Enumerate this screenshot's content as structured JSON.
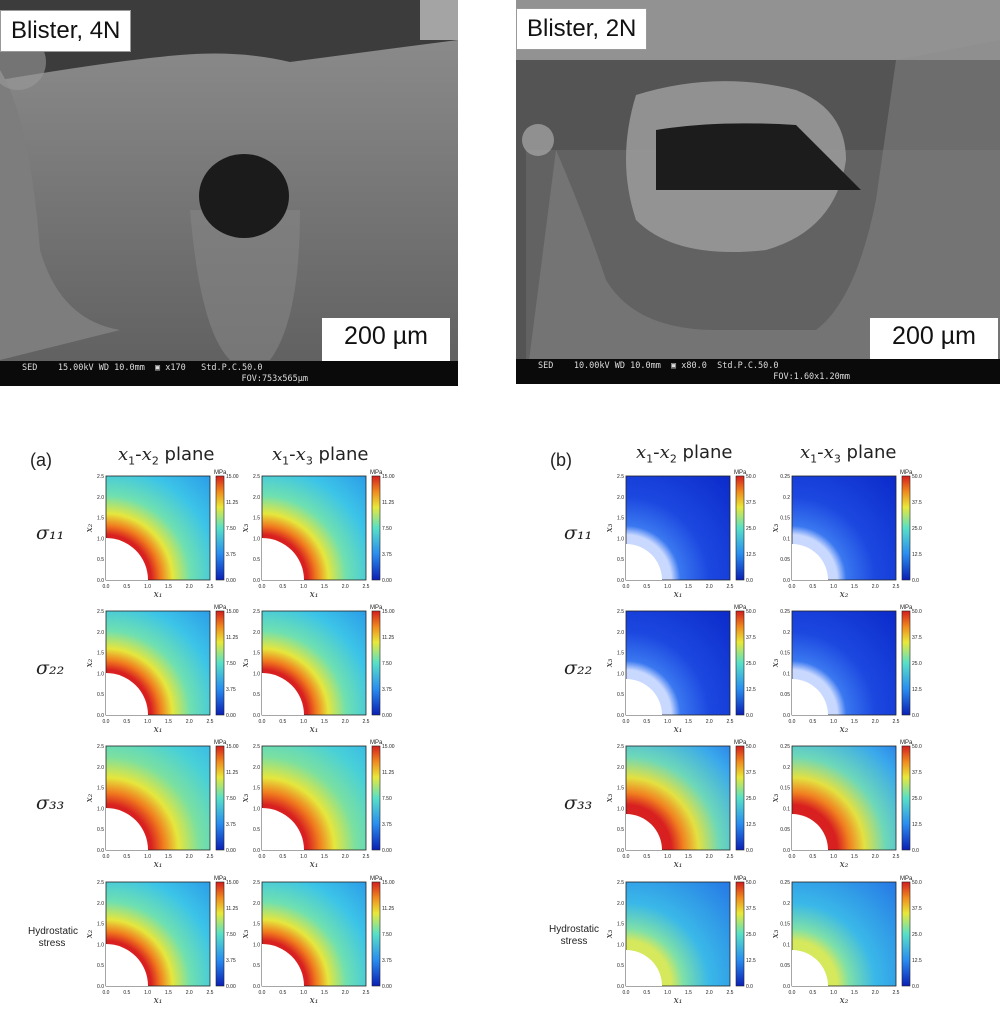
{
  "sem_images": [
    {
      "label": "Blister, 4N",
      "footer_line1": "SED    15.00kV WD 10.0mm  ▣ x170   Std.P.C.50.0",
      "footer_line2": "FOV:753x565µm",
      "scale": "200 µm"
    },
    {
      "label": "Blister, 2N",
      "footer_line1": "SED    10.00kV WD 10.0mm  ▣ x80.0  Std.P.C.50.0",
      "footer_line2": "FOV:1.60x1.20mm",
      "scale": "200 µm"
    }
  ],
  "panels": [
    {
      "letter": "(a)",
      "col_heads": [
        {
          "a": "x",
          "sa": "1",
          "b": "x",
          "sb": "2",
          "suffix": " plane"
        },
        {
          "a": "x",
          "sa": "1",
          "b": "x",
          "sb": "3",
          "suffix": " plane"
        }
      ],
      "rows": [
        {
          "label": "σ₁₁",
          "small": false
        },
        {
          "label": "σ₂₂",
          "small": false
        },
        {
          "label": "σ₃₃",
          "small": false
        },
        {
          "label": "Hydrostatic stress",
          "small": true
        }
      ],
      "unit": "MPa",
      "x_ticks": [
        "0.0",
        "0.5",
        "1.0",
        "1.5",
        "2.0",
        "2.5"
      ],
      "y_ticks": [
        "0.0",
        "0.5",
        "1.0",
        "1.5",
        "2.0",
        "2.5"
      ],
      "colorbar_ticks": [
        "15.00",
        "11.25",
        "7.50",
        "3.75",
        "0.00"
      ],
      "xlabel": "x₁",
      "ylabels": [
        "x₂",
        "x₃"
      ]
    },
    {
      "letter": "(b)",
      "col_heads": [
        {
          "a": "x",
          "sa": "1",
          "b": "x",
          "sb": "2",
          "suffix": " plane"
        },
        {
          "a": "x",
          "sa": "1",
          "b": "x",
          "sb": "3",
          "suffix": " plane"
        }
      ],
      "rows": [
        {
          "label": "σ₁₁",
          "small": false
        },
        {
          "label": "σ₂₂",
          "small": false
        },
        {
          "label": "σ₃₃",
          "small": false
        },
        {
          "label": "Hydrostatic stress",
          "small": true
        }
      ],
      "unit": "MPa",
      "x_ticks_left": [
        "0.0",
        "0.5",
        "1.0",
        "1.5",
        "2.0",
        "2.5"
      ],
      "y_ticks_left": [
        "0.0",
        "0.5",
        "1.0",
        "1.5",
        "2.0",
        "2.5"
      ],
      "x_ticks_right": [
        "0.0",
        "0.5",
        "1.0",
        "1.5",
        "2.0",
        "2.5"
      ],
      "y_ticks_right": [
        "0.0",
        "0.05",
        "0.1",
        "0.15",
        "0.2",
        "0.25"
      ],
      "colorbar_ticks": [
        "50.0",
        "37.5",
        "25.0",
        "12.5",
        "0.0"
      ],
      "xlabels": [
        "x₁",
        "x₂"
      ],
      "ylabels": [
        "x₃",
        "x₃"
      ]
    }
  ]
}
